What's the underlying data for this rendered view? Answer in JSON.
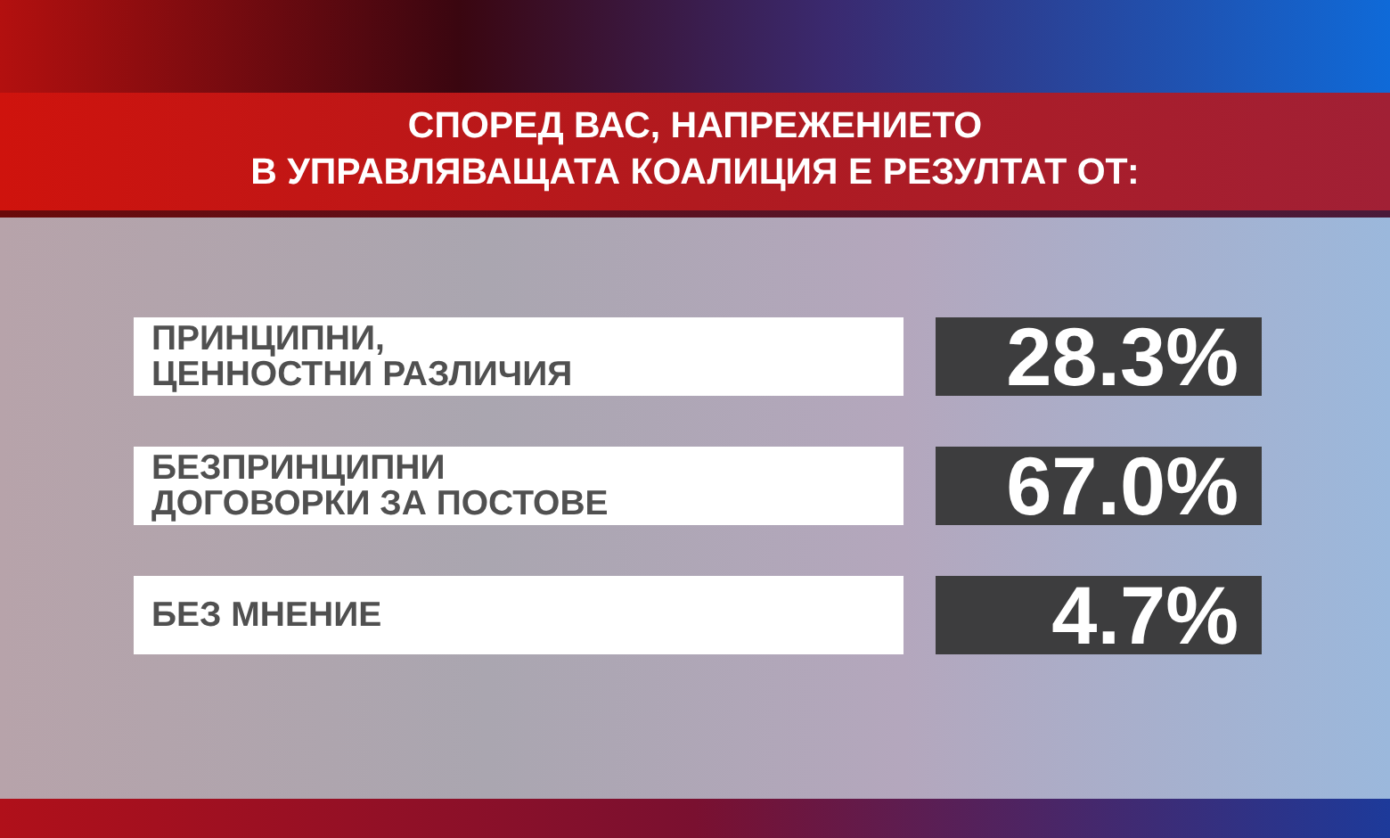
{
  "chart_data": {
    "type": "other",
    "title": "СПОРЕД ВАС, НАПРЕЖЕНИЕТО\nВ УПРАВЛЯВАЩАТА КОАЛИЦИЯ Е РЕЗУЛТАТ ОТ:",
    "categories": [
      "ПРИНЦИПНИ,\nЦЕННОСТНИ РАЗЛИЧИЯ",
      "БЕЗПРИНЦИПНИ\nДОГОВОРКИ ЗА ПОСТОВЕ",
      "БЕЗ МНЕНИЕ"
    ],
    "values": [
      28.3,
      67.0,
      4.7
    ],
    "value_labels": [
      "28.3%",
      "67.0%",
      "4.7%"
    ]
  }
}
